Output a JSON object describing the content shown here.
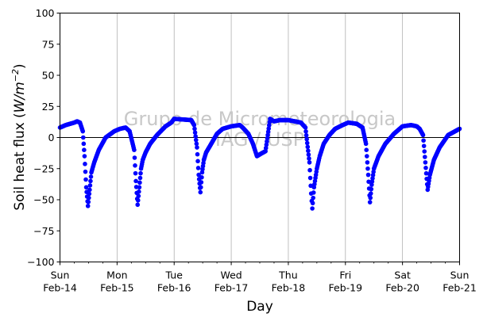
{
  "chart_data": {
    "type": "scatter",
    "xlabel": "Day",
    "ylabel_main": "Soil heat flux (",
    "ylabel_unit": "W/m",
    "ylabel_exp": "−2",
    "ylabel_close": ")",
    "ylim": [
      -100,
      100
    ],
    "xlim": [
      "2021-02-14",
      "2021-02-21"
    ],
    "grid": "vertical",
    "zero_line": true,
    "y_ticks": [
      "100",
      "75",
      "50",
      "25",
      "0",
      "−25",
      "−50",
      "−75",
      "−100"
    ],
    "x_tick_days": [
      "Sun",
      "Mon",
      "Tue",
      "Wed",
      "Thu",
      "Fri",
      "Sat",
      "Sun"
    ],
    "x_tick_dates": [
      "Feb-14",
      "Feb-15",
      "Feb-16",
      "Feb-17",
      "Feb-18",
      "Feb-19",
      "Feb-20",
      "Feb-21"
    ],
    "watermark_line1": "Grupo de Micrometeorologia",
    "watermark_line2": "IAG / USP",
    "series_color": "#0000ff",
    "series": [
      {
        "x_days": [
          0.0,
          0.1,
          0.25,
          0.3,
          0.35,
          0.4,
          0.43,
          0.46,
          0.49,
          0.52,
          0.55,
          0.6,
          0.68,
          0.8,
          0.95,
          1.05,
          1.15,
          1.22,
          1.3,
          1.33,
          1.36,
          1.39,
          1.42,
          1.45,
          1.5,
          1.58,
          1.7,
          1.85,
          1.95,
          2.0,
          2.3,
          2.35,
          2.4,
          2.43,
          2.46,
          2.49,
          2.52,
          2.56,
          2.65,
          2.75,
          2.85,
          3.0,
          3.15,
          3.2,
          3.3,
          3.38,
          3.45,
          3.52,
          3.6,
          3.68,
          3.75,
          3.85,
          4.0,
          4.22,
          4.3,
          4.37,
          4.4,
          4.42,
          4.45,
          4.5,
          4.55,
          4.62,
          4.72,
          4.82,
          4.95,
          5.05,
          5.2,
          5.3,
          5.36,
          5.4,
          5.43,
          5.46,
          5.5,
          5.58,
          5.7,
          5.85,
          5.95,
          6.0,
          6.15,
          6.25,
          6.3,
          6.36,
          6.4,
          6.44,
          6.48,
          6.55,
          6.65,
          6.8,
          6.92,
          7.0
        ],
        "y": [
          8,
          10,
          12,
          13,
          12,
          5,
          -15,
          -40,
          -55,
          -42,
          -28,
          -20,
          -10,
          0,
          5,
          7,
          8,
          5,
          -10,
          -35,
          -54,
          -40,
          -25,
          -18,
          -12,
          -5,
          2,
          9,
          12,
          15,
          14,
          10,
          -8,
          -30,
          -44,
          -28,
          -18,
          -12,
          -5,
          3,
          7,
          9,
          10,
          8,
          3,
          -5,
          -15,
          -13,
          -11,
          15,
          13,
          14,
          14,
          12,
          8,
          -20,
          -45,
          -57,
          -40,
          -25,
          -15,
          -5,
          2,
          7,
          10,
          12,
          11,
          8,
          -5,
          -30,
          -52,
          -38,
          -25,
          -15,
          -5,
          3,
          7,
          9,
          10,
          9,
          7,
          2,
          -20,
          -42,
          -30,
          -18,
          -8,
          2,
          5,
          7
        ]
      }
    ]
  }
}
